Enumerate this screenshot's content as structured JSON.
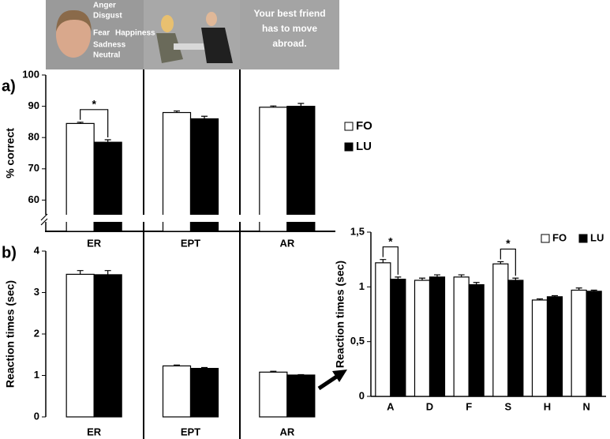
{
  "image_strip": {
    "emotions": [
      "Anger",
      "Disgust",
      "Fear",
      "Happiness",
      "Sadness",
      "Neutral"
    ],
    "scenario": "Your best friend has to move abroad."
  },
  "chart_data": [
    {
      "type": "bar",
      "label": "a)",
      "y_label": "% correct",
      "categories": [
        "ER",
        "EPT",
        "AR"
      ],
      "series": [
        {
          "name": "FO",
          "color": "#ffffff",
          "values": [
            84.5,
            88,
            89.7
          ],
          "errors": [
            0.4,
            0.5,
            0.4
          ]
        },
        {
          "name": "LU",
          "color": "#000000",
          "values": [
            78.5,
            86,
            90
          ],
          "errors": [
            0.8,
            0.8,
            0.9
          ]
        }
      ],
      "ylim": [
        50,
        100
      ],
      "yticks": [
        60,
        70,
        80,
        90,
        100
      ],
      "axis_break": true,
      "legend": "right",
      "significance_label": "*",
      "significant_categories": [
        "ER"
      ]
    },
    {
      "type": "bar",
      "label": "b)",
      "y_label": "Reaction times (sec)",
      "categories": [
        "ER",
        "EPT",
        "AR"
      ],
      "series": [
        {
          "name": "FO",
          "color": "#ffffff",
          "values": [
            3.44,
            1.23,
            1.08
          ],
          "errors": [
            0.09,
            0.02,
            0.02
          ]
        },
        {
          "name": "LU",
          "color": "#000000",
          "values": [
            3.43,
            1.17,
            1.01
          ],
          "errors": [
            0.1,
            0.02,
            0.01
          ]
        }
      ],
      "ylim": [
        0,
        4
      ],
      "yticks": [
        0,
        1,
        2,
        3,
        4
      ]
    },
    {
      "type": "bar",
      "y_label": "Reaction times (sec)",
      "categories": [
        "A",
        "D",
        "F",
        "S",
        "H",
        "N"
      ],
      "series": [
        {
          "name": "FO",
          "color": "#ffffff",
          "values": [
            1.22,
            1.06,
            1.09,
            1.21,
            0.88,
            0.97
          ],
          "errors": [
            0.03,
            0.02,
            0.02,
            0.02,
            0.01,
            0.02
          ]
        },
        {
          "name": "LU",
          "color": "#000000",
          "values": [
            1.07,
            1.09,
            1.02,
            1.06,
            0.91,
            0.96
          ],
          "errors": [
            0.02,
            0.02,
            0.02,
            0.02,
            0.01,
            0.01
          ]
        }
      ],
      "ylim": [
        0,
        1.5
      ],
      "yticks": [
        0,
        {
          "value": 0.5,
          "label": "0,5"
        },
        1,
        {
          "value": 1.5,
          "label": "1,5"
        }
      ],
      "legend": "upper right",
      "significance_label": "*",
      "significant_categories": [
        "A",
        "S"
      ]
    }
  ]
}
